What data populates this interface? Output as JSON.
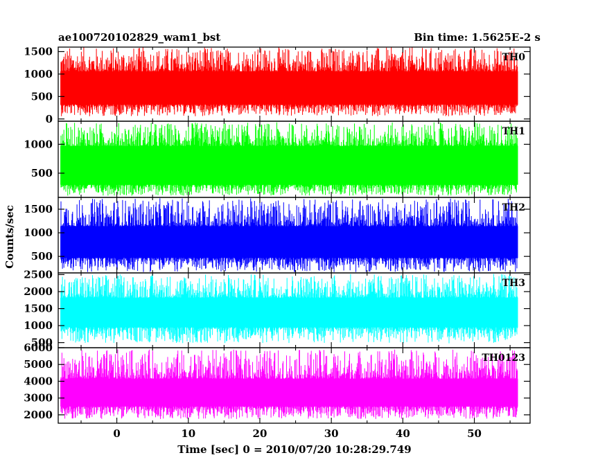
{
  "chart_data": {
    "type": "line",
    "title_left": "ae100720102829_wam1_bst",
    "title_right": "Bin time: 1.5625E-2 s",
    "xlabel": "Time [sec] 0 = 2010/07/20 10:28:29.749",
    "ylabel": "Counts/sec",
    "xlim": [
      -8.2,
      57.8
    ],
    "x_data_range": [
      -7.9,
      56.1
    ],
    "xticks": [
      0,
      10,
      20,
      30,
      40,
      50
    ],
    "grid": false,
    "panels": [
      {
        "name": "TH0",
        "color": "#ff0000",
        "ylim": [
          -50,
          1600
        ],
        "yticks": [
          0,
          500,
          1000,
          1500
        ],
        "band_low": 320,
        "band_high": 1060,
        "spike_min": 60,
        "spike_max": 1600
      },
      {
        "name": "TH1",
        "color": "#00ff00",
        "ylim": [
          80,
          1400
        ],
        "yticks": [
          500,
          1000
        ],
        "band_low": 300,
        "band_high": 970,
        "spike_min": 110,
        "spike_max": 1380
      },
      {
        "name": "TH2",
        "color": "#0000ff",
        "ylim": [
          150,
          1750
        ],
        "yticks": [
          500,
          1000,
          1500
        ],
        "band_low": 470,
        "band_high": 1140,
        "spike_min": 170,
        "spike_max": 1730
      },
      {
        "name": "TH3",
        "color": "#00ffff",
        "ylim": [
          350,
          2550
        ],
        "yticks": [
          500,
          1000,
          1500,
          2000,
          2500
        ],
        "band_low": 950,
        "band_high": 1820,
        "spike_min": 480,
        "spike_max": 2520
      },
      {
        "name": "TH0123",
        "color": "#ff00ff",
        "ylim": [
          1500,
          6000
        ],
        "yticks": [
          2000,
          3000,
          4000,
          5000,
          6000
        ],
        "band_low": 2500,
        "band_high": 4150,
        "spike_min": 1750,
        "spike_max": 5900
      }
    ]
  }
}
